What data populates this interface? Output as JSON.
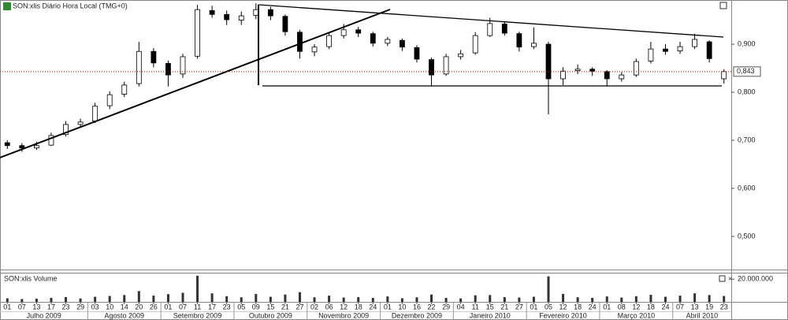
{
  "chart_data": {
    "type": "candlestick",
    "title": "SON:xlis Diário Hora Local (TMG+0)",
    "categories": [
      "01",
      "07",
      "13",
      "17",
      "23",
      "29",
      "03",
      "10",
      "14",
      "20",
      "26",
      "01",
      "07",
      "11",
      "17",
      "23",
      "05",
      "09",
      "15",
      "21",
      "27",
      "02",
      "06",
      "12",
      "18",
      "24",
      "01",
      "10",
      "16",
      "22",
      "29",
      "04",
      "11",
      "15",
      "21",
      "27",
      "01",
      "05",
      "12",
      "18",
      "24",
      "01",
      "08",
      "12",
      "18",
      "24",
      "07",
      "13",
      "19",
      "23"
    ],
    "month_labels": [
      "Julho 2009",
      "Agosto 2009",
      "Setembro 2009",
      "Outubro 2009",
      "Novembro 2009",
      "Dezembro 2009",
      "Janeiro 2010",
      "Fevereiro 2010",
      "Março 2010",
      "Abril 2010"
    ],
    "open": [
      0.695,
      0.689,
      0.684,
      0.69,
      0.712,
      0.733,
      0.74,
      0.772,
      0.796,
      0.818,
      0.885,
      0.86,
      0.838,
      0.875,
      0.97,
      0.962,
      0.95,
      0.96,
      0.972,
      0.958,
      0.925,
      0.884,
      0.895,
      0.918,
      0.93,
      0.922,
      0.902,
      0.908,
      0.893,
      0.868,
      0.838,
      0.874,
      0.882,
      0.918,
      0.942,
      0.922,
      0.895,
      0.9,
      0.828,
      0.845,
      0.848,
      0.843,
      0.828,
      0.836,
      0.865,
      0.89,
      0.886,
      0.895,
      0.905,
      0.828
    ],
    "high": [
      0.7,
      0.694,
      0.697,
      0.716,
      0.74,
      0.745,
      0.778,
      0.802,
      0.822,
      0.905,
      0.892,
      0.866,
      0.88,
      0.982,
      0.98,
      0.97,
      0.968,
      0.985,
      0.978,
      0.962,
      0.93,
      0.9,
      0.925,
      0.942,
      0.936,
      0.926,
      0.915,
      0.912,
      0.898,
      0.872,
      0.88,
      0.888,
      0.925,
      0.955,
      0.948,
      0.926,
      0.935,
      0.905,
      0.852,
      0.858,
      0.852,
      0.846,
      0.842,
      0.87,
      0.905,
      0.9,
      0.905,
      0.922,
      0.908,
      0.848
    ],
    "low": [
      0.682,
      0.676,
      0.68,
      0.688,
      0.708,
      0.728,
      0.736,
      0.765,
      0.79,
      0.812,
      0.852,
      0.812,
      0.83,
      0.87,
      0.955,
      0.94,
      0.94,
      0.952,
      0.95,
      0.918,
      0.87,
      0.875,
      0.89,
      0.912,
      0.915,
      0.895,
      0.896,
      0.886,
      0.862,
      0.812,
      0.834,
      0.868,
      0.878,
      0.915,
      0.918,
      0.885,
      0.89,
      0.754,
      0.815,
      0.838,
      0.834,
      0.812,
      0.822,
      0.832,
      0.86,
      0.878,
      0.88,
      0.89,
      0.862,
      0.818
    ],
    "close": [
      0.689,
      0.684,
      0.689,
      0.71,
      0.733,
      0.738,
      0.771,
      0.795,
      0.815,
      0.885,
      0.861,
      0.836,
      0.874,
      0.972,
      0.962,
      0.951,
      0.959,
      0.972,
      0.959,
      0.926,
      0.885,
      0.894,
      0.918,
      0.93,
      0.923,
      0.902,
      0.91,
      0.894,
      0.869,
      0.836,
      0.874,
      0.88,
      0.918,
      0.943,
      0.923,
      0.894,
      0.902,
      0.828,
      0.844,
      0.848,
      0.844,
      0.828,
      0.836,
      0.864,
      0.89,
      0.885,
      0.895,
      0.91,
      0.87,
      0.843
    ],
    "up_color": "#ffffff",
    "down_color": "#000000",
    "wick_color": "#000000",
    "ylim": [
      0.431,
      0.992
    ],
    "yticks": [
      {
        "value": 0.5,
        "label": "0,500"
      },
      {
        "value": 0.6,
        "label": "0,600"
      },
      {
        "value": 0.7,
        "label": "0,700"
      },
      {
        "value": 0.8,
        "label": "0,800"
      },
      {
        "value": 0.9,
        "label": "0,900"
      }
    ],
    "last_price": {
      "value": 0.843,
      "label": "0,843",
      "color": "#cc0000"
    },
    "volume": {
      "title": "SON:xlis Volume",
      "color": "#333333",
      "values": [
        3100000,
        2500000,
        2800000,
        3500000,
        4200000,
        3000000,
        4500000,
        5200000,
        6000000,
        9500000,
        5500000,
        6800000,
        8000000,
        23000000,
        7500000,
        5000000,
        4000000,
        7000000,
        4500000,
        6500000,
        8500000,
        4000000,
        5500000,
        3800000,
        4200000,
        3500000,
        4800000,
        3200000,
        4000000,
        6500000,
        3500000,
        3000000,
        5800000,
        6000000,
        4200000,
        3800000,
        4500000,
        22500000,
        7000000,
        4000000,
        3500000,
        4800000,
        3800000,
        5000000,
        6200000,
        4500000,
        5500000,
        7500000,
        6000000,
        5200000
      ],
      "ylim": [
        0,
        25000000
      ],
      "yticks": [
        {
          "value": 20000000,
          "label": "20.000.000"
        }
      ]
    }
  }
}
